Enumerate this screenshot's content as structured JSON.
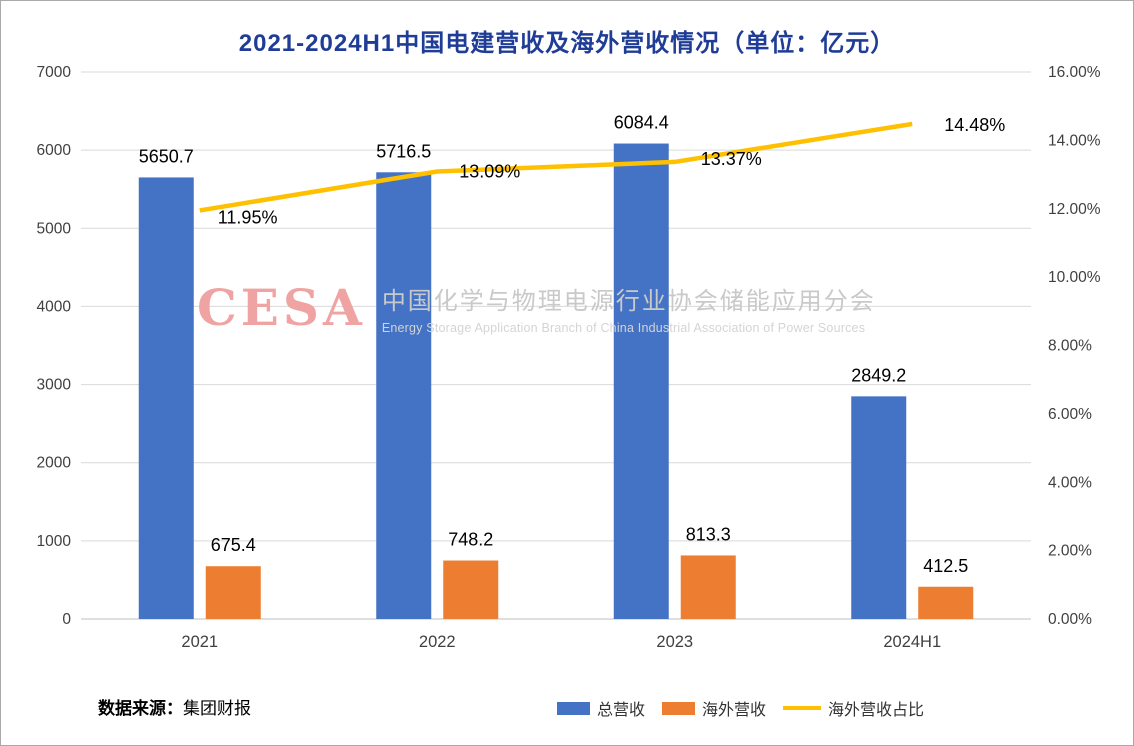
{
  "chart_data": {
    "type": "bar+line",
    "title": "2021-2024H1中国电建营收及海外营收情况（单位：亿元）",
    "categories": [
      "2021",
      "2022",
      "2023",
      "2024H1"
    ],
    "series": [
      {
        "name": "总营收",
        "type": "bar",
        "axis": "left",
        "color": "#4472C4",
        "values": [
          5650.7,
          5716.5,
          6084.4,
          2849.2
        ]
      },
      {
        "name": "海外营收",
        "type": "bar",
        "axis": "left",
        "color": "#ED7D31",
        "values": [
          675.4,
          748.2,
          813.3,
          412.5
        ]
      },
      {
        "name": "海外营收占比",
        "type": "line",
        "axis": "right",
        "color": "#FFC000",
        "unit": "%",
        "values": [
          11.95,
          13.09,
          13.37,
          14.48
        ]
      }
    ],
    "ylim": [
      0,
      7000
    ],
    "ytick_step": 1000,
    "y2lim": [
      0,
      16
    ],
    "y2tick_step": 2,
    "grid": true,
    "legend_position": "bottom",
    "left_tick_labels": [
      "0",
      "1000",
      "2000",
      "3000",
      "4000",
      "5000",
      "6000",
      "7000"
    ],
    "right_tick_labels": [
      "0.00%",
      "2.00%",
      "4.00%",
      "6.00%",
      "8.00%",
      "10.00%",
      "12.00%",
      "14.00%",
      "16.00%"
    ]
  },
  "source": {
    "label": "数据来源：",
    "value": "集团财报"
  },
  "watermark": {
    "logo": "CESA",
    "cn_text": "中国化学与物理电源行业协会储能应用分会",
    "en_text": "Energy Storage Application Branch of China Industrial Association of Power Sources"
  },
  "colors": {
    "title": "#1f3c97",
    "grid": "#d9d9d9",
    "axis_text": "#404040",
    "data_label": "#000000"
  }
}
